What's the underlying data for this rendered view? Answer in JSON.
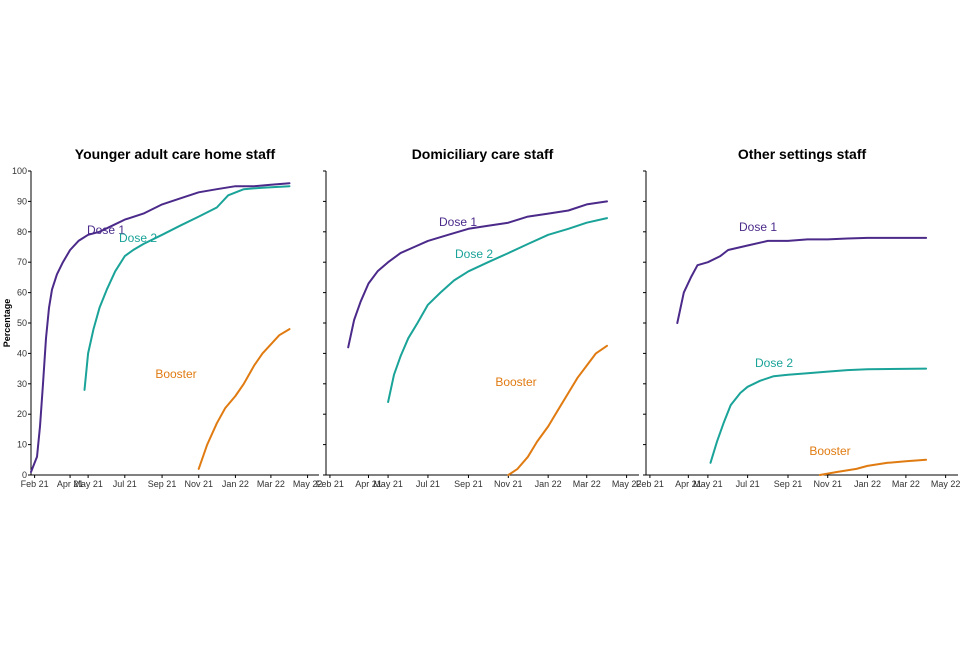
{
  "chart_data": {
    "type": "line",
    "ylabel": "Percentage",
    "ylim": [
      0,
      100
    ],
    "yticks": [
      0,
      10,
      20,
      30,
      40,
      50,
      60,
      70,
      80,
      90,
      100
    ],
    "x_tick_labels": [
      "Feb 21",
      "Apr 21",
      "May 21",
      "Jul 21",
      "Sep 21",
      "Nov 21",
      "Jan 22",
      "Mar 22",
      "May 22"
    ],
    "x_tick_dates": [
      "2021-02-01",
      "2021-04-01",
      "2021-05-01",
      "2021-07-01",
      "2021-09-01",
      "2021-11-01",
      "2022-01-01",
      "2022-03-01",
      "2022-05-01"
    ],
    "x_range": [
      "2021-01-26",
      "2022-05-20"
    ],
    "grid": false,
    "legend": "none (series labelled inline)",
    "series_colors": {
      "Dose 1": "#4b2a8a",
      "Dose 2": "#1aa398",
      "Booster": "#e07b12"
    },
    "panels": [
      {
        "title": "Younger adult care home staff",
        "series": [
          {
            "name": "Dose 1",
            "points": [
              [
                "2021-01-26",
                1
              ],
              [
                "2021-01-30",
                3
              ],
              [
                "2021-02-05",
                6
              ],
              [
                "2021-02-10",
                16
              ],
              [
                "2021-02-15",
                30
              ],
              [
                "2021-02-20",
                45
              ],
              [
                "2021-02-25",
                55
              ],
              [
                "2021-03-02",
                61
              ],
              [
                "2021-03-10",
                66
              ],
              [
                "2021-03-20",
                70
              ],
              [
                "2021-04-01",
                74
              ],
              [
                "2021-04-15",
                77
              ],
              [
                "2021-05-01",
                79
              ],
              [
                "2021-05-20",
                80
              ],
              [
                "2021-06-10",
                82
              ],
              [
                "2021-07-01",
                84
              ],
              [
                "2021-08-01",
                86
              ],
              [
                "2021-09-01",
                89
              ],
              [
                "2021-10-01",
                91
              ],
              [
                "2021-11-01",
                93
              ],
              [
                "2021-12-01",
                94
              ],
              [
                "2022-01-01",
                95
              ],
              [
                "2022-02-01",
                95
              ],
              [
                "2022-03-01",
                95.5
              ],
              [
                "2022-04-01",
                96
              ]
            ]
          },
          {
            "name": "Dose 2",
            "points": [
              [
                "2021-04-25",
                28
              ],
              [
                "2021-05-01",
                40
              ],
              [
                "2021-05-10",
                48
              ],
              [
                "2021-05-20",
                55
              ],
              [
                "2021-06-01",
                61
              ],
              [
                "2021-06-15",
                67
              ],
              [
                "2021-07-01",
                72
              ],
              [
                "2021-07-15",
                74
              ],
              [
                "2021-08-01",
                76
              ],
              [
                "2021-09-01",
                79
              ],
              [
                "2021-10-01",
                82
              ],
              [
                "2021-11-01",
                85
              ],
              [
                "2021-12-01",
                88
              ],
              [
                "2021-12-20",
                92
              ],
              [
                "2022-01-15",
                94
              ],
              [
                "2022-02-15",
                94.5
              ],
              [
                "2022-04-01",
                95
              ]
            ]
          },
          {
            "name": "Booster",
            "points": [
              [
                "2021-11-01",
                2
              ],
              [
                "2021-11-15",
                10
              ],
              [
                "2021-12-01",
                17
              ],
              [
                "2021-12-15",
                22
              ],
              [
                "2022-01-01",
                26
              ],
              [
                "2022-01-15",
                30
              ],
              [
                "2022-02-01",
                36
              ],
              [
                "2022-02-15",
                40
              ],
              [
                "2022-03-01",
                43
              ],
              [
                "2022-03-15",
                46
              ],
              [
                "2022-04-01",
                48
              ]
            ]
          }
        ],
        "labels": {
          "Dose 1": "Dose 1",
          "Dose 2": "Dose 2",
          "Booster": "Booster"
        }
      },
      {
        "title": "Domiciliary care staff",
        "series": [
          {
            "name": "Dose 1",
            "points": [
              [
                "2021-03-01",
                42
              ],
              [
                "2021-03-10",
                51
              ],
              [
                "2021-03-20",
                57
              ],
              [
                "2021-04-01",
                63
              ],
              [
                "2021-04-15",
                67
              ],
              [
                "2021-05-01",
                70
              ],
              [
                "2021-05-20",
                73
              ],
              [
                "2021-06-10",
                75
              ],
              [
                "2021-07-01",
                77
              ],
              [
                "2021-08-01",
                79
              ],
              [
                "2021-09-01",
                81
              ],
              [
                "2021-10-01",
                82
              ],
              [
                "2021-11-01",
                83
              ],
              [
                "2021-12-01",
                85
              ],
              [
                "2022-01-01",
                86
              ],
              [
                "2022-02-01",
                87
              ],
              [
                "2022-03-01",
                89
              ],
              [
                "2022-04-01",
                90
              ]
            ]
          },
          {
            "name": "Dose 2",
            "points": [
              [
                "2021-05-01",
                24
              ],
              [
                "2021-05-10",
                33
              ],
              [
                "2021-05-20",
                39
              ],
              [
                "2021-06-01",
                45
              ],
              [
                "2021-06-15",
                50
              ],
              [
                "2021-07-01",
                56
              ],
              [
                "2021-07-20",
                60
              ],
              [
                "2021-08-10",
                64
              ],
              [
                "2021-09-01",
                67
              ],
              [
                "2021-10-01",
                70
              ],
              [
                "2021-11-01",
                73
              ],
              [
                "2021-12-01",
                76
              ],
              [
                "2022-01-01",
                79
              ],
              [
                "2022-02-01",
                81
              ],
              [
                "2022-03-01",
                83
              ],
              [
                "2022-04-01",
                84.5
              ]
            ]
          },
          {
            "name": "Booster",
            "points": [
              [
                "2021-11-01",
                0
              ],
              [
                "2021-11-15",
                2
              ],
              [
                "2021-12-01",
                6
              ],
              [
                "2021-12-15",
                11
              ],
              [
                "2022-01-01",
                16
              ],
              [
                "2022-01-15",
                21
              ],
              [
                "2022-02-01",
                27
              ],
              [
                "2022-02-15",
                32
              ],
              [
                "2022-03-01",
                36
              ],
              [
                "2022-03-15",
                40
              ],
              [
                "2022-04-01",
                42.5
              ]
            ]
          }
        ],
        "labels": {
          "Dose 1": "Dose 1",
          "Dose 2": "Dose 2",
          "Booster": "Booster"
        }
      },
      {
        "title": "Other settings staff",
        "series": [
          {
            "name": "Dose 1",
            "points": [
              [
                "2021-03-15",
                50
              ],
              [
                "2021-03-25",
                60
              ],
              [
                "2021-04-05",
                65
              ],
              [
                "2021-04-15",
                69
              ],
              [
                "2021-05-01",
                70
              ],
              [
                "2021-05-20",
                72
              ],
              [
                "2021-06-01",
                74
              ],
              [
                "2021-07-01",
                75.5
              ],
              [
                "2021-08-01",
                77
              ],
              [
                "2021-09-01",
                77
              ],
              [
                "2021-10-01",
                77.5
              ],
              [
                "2021-11-01",
                77.5
              ],
              [
                "2021-12-01",
                77.8
              ],
              [
                "2022-01-01",
                78
              ],
              [
                "2022-02-01",
                78
              ],
              [
                "2022-04-01",
                78
              ]
            ]
          },
          {
            "name": "Dose 2",
            "points": [
              [
                "2021-05-05",
                4
              ],
              [
                "2021-05-15",
                11
              ],
              [
                "2021-05-25",
                17
              ],
              [
                "2021-06-05",
                23
              ],
              [
                "2021-06-20",
                27
              ],
              [
                "2021-07-01",
                29
              ],
              [
                "2021-07-20",
                31
              ],
              [
                "2021-08-10",
                32.5
              ],
              [
                "2021-09-01",
                33
              ],
              [
                "2021-10-01",
                33.5
              ],
              [
                "2021-11-01",
                34
              ],
              [
                "2021-12-01",
                34.5
              ],
              [
                "2022-01-01",
                34.8
              ],
              [
                "2022-04-01",
                35
              ]
            ]
          },
          {
            "name": "Booster",
            "points": [
              [
                "2021-10-20",
                0
              ],
              [
                "2021-11-15",
                1
              ],
              [
                "2021-12-15",
                2
              ],
              [
                "2022-01-01",
                3
              ],
              [
                "2022-02-01",
                4
              ],
              [
                "2022-03-01",
                4.5
              ],
              [
                "2022-04-01",
                5
              ]
            ]
          }
        ],
        "labels": {
          "Dose 1": "Dose 1",
          "Dose 2": "Dose 2",
          "Booster": "Booster"
        }
      }
    ]
  }
}
